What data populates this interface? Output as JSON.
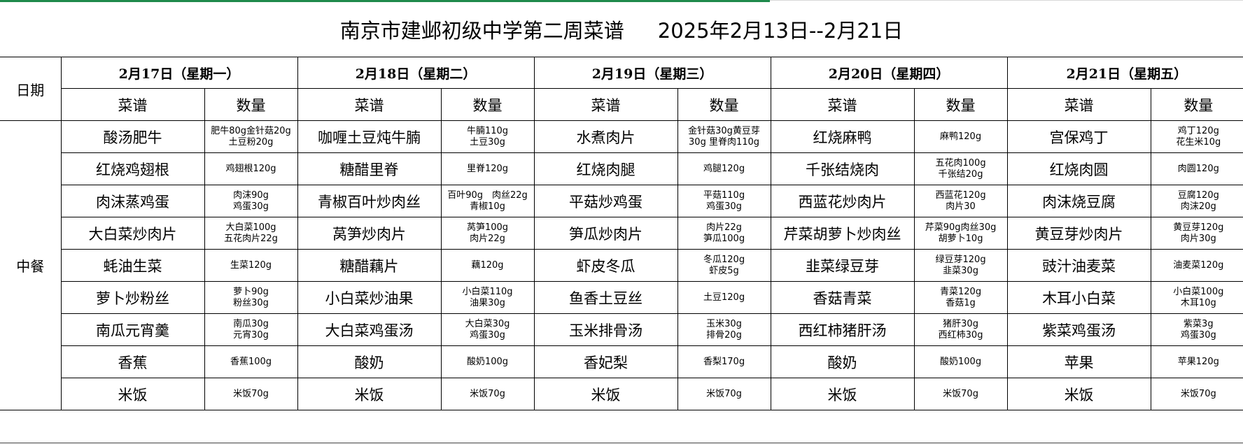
{
  "title": "南京市建邺初级中学第二周菜谱",
  "date_range": "2025年2月13日--2月21日",
  "row_label_date": "日期",
  "row_label_meal": "中餐",
  "col_dish": "菜谱",
  "col_qty": "数量",
  "days": [
    {
      "label": "2月17日（星期一）",
      "items": [
        {
          "dish": "酸汤肥牛",
          "qty": [
            "肥牛80g金针菇20g",
            "土豆粉20g"
          ]
        },
        {
          "dish": "红烧鸡翅根",
          "qty": [
            "鸡翅根120g"
          ]
        },
        {
          "dish": "肉沫蒸鸡蛋",
          "qty": [
            "肉沫90g",
            "鸡蛋30g"
          ]
        },
        {
          "dish": "大白菜炒肉片",
          "qty": [
            "大白菜100g",
            "五花肉片22g"
          ]
        },
        {
          "dish": "蚝油生菜",
          "qty": [
            "生菜120g"
          ]
        },
        {
          "dish": "萝卜炒粉丝",
          "qty": [
            "萝卜90g",
            "粉丝30g"
          ]
        },
        {
          "dish": "南瓜元宵羹",
          "qty": [
            "南瓜30g",
            "元宵30g"
          ]
        },
        {
          "dish": "香蕉",
          "qty": [
            "香蕉100g"
          ]
        },
        {
          "dish": "米饭",
          "qty": [
            "米饭70g"
          ]
        }
      ]
    },
    {
      "label": "2月18日（星期二）",
      "items": [
        {
          "dish": "咖喱土豆炖牛腩",
          "qty": [
            "牛腩110g",
            "土豆30g"
          ]
        },
        {
          "dish": "糖醋里脊",
          "qty": [
            "里脊120g"
          ]
        },
        {
          "dish": "青椒百叶炒肉丝",
          "qty": [
            "百叶90g　肉丝22g",
            "青椒10g"
          ]
        },
        {
          "dish": "莴笋炒肉片",
          "qty": [
            "莴笋100g",
            "肉片22g"
          ]
        },
        {
          "dish": "糖醋藕片",
          "qty": [
            "藕120g"
          ]
        },
        {
          "dish": "小白菜炒油果",
          "qty": [
            "小白菜110g",
            "油果30g"
          ]
        },
        {
          "dish": "大白菜鸡蛋汤",
          "qty": [
            "大白菜30g",
            "鸡蛋30g"
          ]
        },
        {
          "dish": "酸奶",
          "qty": [
            "酸奶100g"
          ]
        },
        {
          "dish": "米饭",
          "qty": [
            "米饭70g"
          ]
        }
      ]
    },
    {
      "label": "2月19日（星期三）",
      "items": [
        {
          "dish": "水煮肉片",
          "qty": [
            "金针菇30g黄豆芽",
            "30g 里脊肉110g"
          ]
        },
        {
          "dish": "红烧肉腿",
          "qty": [
            "鸡腿120g"
          ]
        },
        {
          "dish": "平菇炒鸡蛋",
          "qty": [
            "平菇110g",
            "鸡蛋30g"
          ]
        },
        {
          "dish": "笋瓜炒肉片",
          "qty": [
            "肉片22g",
            "笋瓜100g"
          ]
        },
        {
          "dish": "虾皮冬瓜",
          "qty": [
            "冬瓜120g",
            "虾皮5g"
          ]
        },
        {
          "dish": "鱼香土豆丝",
          "qty": [
            "土豆120g"
          ]
        },
        {
          "dish": "玉米排骨汤",
          "qty": [
            "玉米30g",
            "排骨20g"
          ]
        },
        {
          "dish": "香妃梨",
          "qty": [
            "香梨170g"
          ]
        },
        {
          "dish": "米饭",
          "qty": [
            "米饭70g"
          ]
        }
      ]
    },
    {
      "label": "2月20日（星期四）",
      "items": [
        {
          "dish": "红烧麻鸭",
          "qty": [
            "麻鸭120g"
          ]
        },
        {
          "dish": "千张结烧肉",
          "qty": [
            "五花肉100g",
            "千张结20g"
          ]
        },
        {
          "dish": "西蓝花炒肉片",
          "qty": [
            "西蓝花120g",
            "肉片30"
          ]
        },
        {
          "dish": "芹菜胡萝卜炒肉丝",
          "qty": [
            "芹菜90g肉丝30g",
            "胡萝卜10g"
          ]
        },
        {
          "dish": "韭菜绿豆芽",
          "qty": [
            "绿豆芽120g",
            "韭菜30g"
          ]
        },
        {
          "dish": "香菇青菜",
          "qty": [
            "青菜120g",
            "香菇1g"
          ]
        },
        {
          "dish": "西红柿猪肝汤",
          "qty": [
            "猪肝30g",
            "西红柿30g"
          ]
        },
        {
          "dish": "酸奶",
          "qty": [
            "酸奶100g"
          ]
        },
        {
          "dish": "米饭",
          "qty": [
            "米饭70g"
          ]
        }
      ]
    },
    {
      "label": "2月21日（星期五）",
      "items": [
        {
          "dish": "宫保鸡丁",
          "qty": [
            "鸡丁120g",
            "花生米10g"
          ]
        },
        {
          "dish": "红烧肉圆",
          "qty": [
            "肉圆120g"
          ]
        },
        {
          "dish": "肉沫烧豆腐",
          "qty": [
            "豆腐120g",
            "肉沫20g"
          ]
        },
        {
          "dish": "黄豆芽炒肉片",
          "qty": [
            "黄豆芽120g",
            "肉片30g"
          ]
        },
        {
          "dish": "豉汁油麦菜",
          "qty": [
            "油麦菜120g"
          ]
        },
        {
          "dish": "木耳小白菜",
          "qty": [
            "小白菜100g",
            "木耳10g"
          ]
        },
        {
          "dish": "紫菜鸡蛋汤",
          "qty": [
            "紫菜3g",
            "鸡蛋30g"
          ]
        },
        {
          "dish": "苹果",
          "qty": [
            "苹果120g"
          ]
        },
        {
          "dish": "米饭",
          "qty": [
            "米饭70g"
          ]
        }
      ]
    }
  ]
}
